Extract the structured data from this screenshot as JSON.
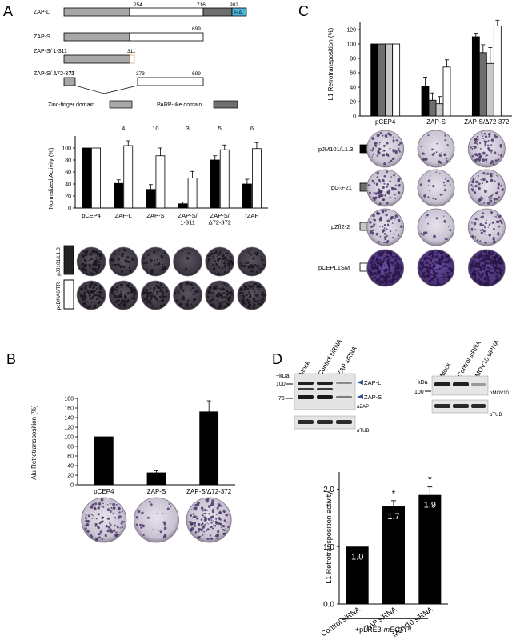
{
  "panels": {
    "A": {
      "letter": "A",
      "diagram": {
        "constructs": [
          {
            "label": "ZAP-L",
            "positions": [
              "254",
              "716",
              "902"
            ],
            "tag": "HA"
          },
          {
            "label": "ZAP-S",
            "positions": [
              "699"
            ]
          },
          {
            "label": "ZAP-S/\n1-311",
            "positions": [
              "311"
            ]
          },
          {
            "label": "ZAP-S/\nΔ72-372",
            "positions": [
              "71",
              "373",
              "699"
            ]
          }
        ],
        "legend": {
          "zinc_finger": "Zinc-finger domain",
          "parp_like": "PARP-like domain"
        }
      },
      "chart": {
        "ylabel": "Normalized Activity (%)",
        "yticks": [
          "0",
          "20",
          "40",
          "60",
          "80",
          "100"
        ],
        "n_labels": [
          "4",
          "10",
          "3",
          "5",
          "6"
        ],
        "categories": [
          "pCEP4",
          "ZAP-L",
          "ZAP-S",
          "ZAP-S/\n1-311",
          "ZAP-S/\nΔ72-372",
          "rZAP"
        ]
      },
      "plate_rows": [
        "pJJ101/L1.3",
        "pcDNA6/TR"
      ]
    },
    "B": {
      "letter": "B",
      "chart": {
        "ylabel": "Alu Retrotransposition (%)",
        "yticks": [
          "0",
          "20",
          "40",
          "60",
          "80",
          "100",
          "120",
          "140",
          "160",
          "180"
        ],
        "categories": [
          "pCEP4",
          "ZAP-S",
          "ZAP-S/Δ72-372"
        ]
      }
    },
    "C": {
      "letter": "C",
      "chart": {
        "ylabel": "L1 Retrotransposition (%)",
        "yticks": [
          "0",
          "20",
          "40",
          "60",
          "80",
          "100",
          "120"
        ],
        "categories": [
          "pCEP4",
          "ZAP-S",
          "ZAP-S/Δ72-372"
        ]
      },
      "plate_rows": [
        "pJM101/L1.3",
        "pG₃F21",
        "pZfl2-2",
        "pCEPL1SM"
      ]
    },
    "D": {
      "letter": "D",
      "blot1": {
        "lanes": [
          "Mock",
          "Control siRNA",
          "ZAP siRNA"
        ],
        "kda": "~kDa",
        "markers": [
          "100",
          "75"
        ],
        "bands": [
          "ZAP-L",
          "ZAP-S"
        ],
        "antibodies": [
          "αZAP",
          "αTUB"
        ]
      },
      "blot2": {
        "lanes": [
          "Mock",
          "Control siRNA",
          "MOV10 siRNA"
        ],
        "kda": "~kDa",
        "markers": [
          "100"
        ],
        "antibodies": [
          "αMOV10",
          "αTUB"
        ]
      },
      "chart": {
        "ylabel": "L1 Retrotransposition activity",
        "yticks": [
          "0.0",
          "1.0",
          "2.0"
        ],
        "categories": [
          "Control siRNA",
          "ZAP siRNA",
          "MOV10 siRNA"
        ],
        "bar_labels": [
          "1.0",
          "1.7",
          "1.9"
        ],
        "significance": [
          "",
          "*",
          "*"
        ],
        "footnote_prefix": "+pLRE3-",
        "footnote_italic": "mEGFPI"
      }
    }
  },
  "colors": {
    "black": "#000000",
    "white": "#ffffff",
    "dark_gray": "#6e6e6e",
    "light_gray": "#c8c8c8",
    "domain_gray": "#a8a8a8",
    "ha_blue": "#4fb3d8",
    "plate_purple": "#5a3f8a"
  },
  "chart_data": [
    {
      "type": "bar",
      "ylabel": "Normalized Activity (%)",
      "ylim": [
        0,
        120
      ],
      "categories": [
        "pCEP4",
        "ZAP-L",
        "ZAP-S",
        "ZAP-S/1-311",
        "ZAP-S/Δ72-372",
        "rZAP"
      ],
      "series": [
        {
          "name": "pJJ101/L1.3",
          "values": [
            100,
            41,
            31,
            7,
            80,
            40
          ],
          "errors": [
            0,
            6,
            8,
            3,
            7,
            8
          ]
        },
        {
          "name": "pcDNA6/TR",
          "values": [
            100,
            104,
            87,
            50,
            97,
            99
          ],
          "errors": [
            0,
            8,
            13,
            11,
            8,
            10
          ]
        }
      ]
    },
    {
      "type": "bar",
      "ylabel": "Alu Retrotransposition (%)",
      "ylim": [
        0,
        180
      ],
      "categories": [
        "pCEP4",
        "ZAP-S",
        "ZAP-S/Δ72-372"
      ],
      "values": [
        100,
        25,
        152
      ],
      "errors": [
        0,
        4,
        23
      ]
    },
    {
      "type": "bar",
      "ylabel": "L1 Retrotransposition (%)",
      "ylim": [
        0,
        120
      ],
      "categories": [
        "pCEP4",
        "ZAP-S",
        "ZAP-S/Δ72-372"
      ],
      "series": [
        {
          "name": "pJM101/L1.3",
          "values": [
            100,
            41,
            110
          ],
          "errors": [
            0,
            13,
            5
          ]
        },
        {
          "name": "pG₃F21",
          "values": [
            100,
            22,
            88
          ],
          "errors": [
            0,
            10,
            11
          ]
        },
        {
          "name": "pZfl2-2",
          "values": [
            100,
            17,
            73
          ],
          "errors": [
            0,
            10,
            22
          ]
        },
        {
          "name": "pCEPL1SM",
          "values": [
            100,
            68,
            125
          ],
          "errors": [
            0,
            10,
            8
          ]
        }
      ]
    },
    {
      "type": "bar",
      "ylabel": "L1 Retrotransposition activity",
      "ylim": [
        0,
        2.3
      ],
      "categories": [
        "Control siRNA",
        "ZAP siRNA",
        "MOV10 siRNA"
      ],
      "values": [
        1.0,
        1.7,
        1.9
      ],
      "errors": [
        0,
        0.1,
        0.14
      ]
    }
  ]
}
